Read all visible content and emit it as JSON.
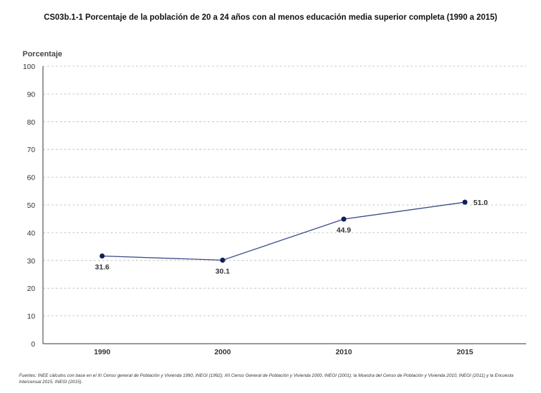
{
  "chart_data": {
    "type": "line",
    "title": "CS03b.1-1 Porcentaje de la población de 20 a 24 años con al menos educación media superior completa (1990 a 2015)",
    "ylabel": "Porcentaje",
    "xlabel": "",
    "categories": [
      "1990",
      "2000",
      "2010",
      "2015"
    ],
    "series": [
      {
        "values": [
          31.6,
          30.1,
          44.9,
          51.0
        ],
        "labels": [
          "31.6",
          "30.1",
          "44.9",
          "51.0"
        ]
      }
    ],
    "ylim": [
      0,
      100
    ],
    "yticks": [
      0,
      10,
      20,
      30,
      40,
      50,
      60,
      70,
      80,
      90,
      100
    ],
    "grid": true,
    "legend": "none",
    "colors": {
      "line": "#3a4a86",
      "marker": "#0f1f5c",
      "grid": "#bbbbbb",
      "axis": "#333333",
      "text": "#333333"
    }
  },
  "footnote": "Fuentes: INEE cálculos con base en el XI Censo general de Población y Vivienda 1990, INEGI (1992); XII Censo General de Población y Vivienda 2000, INEGI (2001); la Muestra del Censo de Población y Vivienda 2010, INEGI (2011) y la Encuesta Intercensal 2015, INEGI (2015)."
}
